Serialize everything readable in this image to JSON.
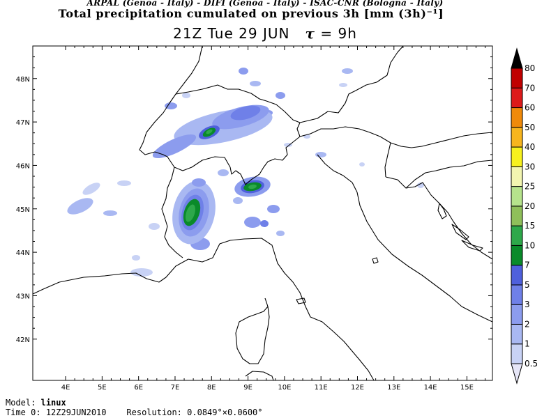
{
  "header": {
    "credits": "ARPAL (Genoa - Italy)  -  DIFI (Genoa - Italy)  -  ISAC-CNR (Bologna - Italy)",
    "title": "Total precipitation cumulated on previous 3h [mm (3h)⁻¹]",
    "time_label": "21Z Tue 29 JUN",
    "tau_symbol": "τ",
    "tau_value": "= 9h"
  },
  "map": {
    "lon_ticks": [
      "4E",
      "5E",
      "6E",
      "7E",
      "8E",
      "9E",
      "10E",
      "11E",
      "12E",
      "13E",
      "14E",
      "15E"
    ],
    "lat_ticks": [
      "48N",
      "47N",
      "46N",
      "45N",
      "44N",
      "43N",
      "42N"
    ],
    "lon_range": [
      3.1,
      15.7
    ],
    "lat_range": [
      41.05,
      48.75
    ]
  },
  "colorbar": {
    "labels": [
      "0.5",
      "1",
      "2",
      "3",
      "5",
      "7",
      "10",
      "15",
      "20",
      "25",
      "30",
      "40",
      "50",
      "60",
      "70",
      "80"
    ],
    "colors": [
      "#e6e6f7",
      "#c8d2f5",
      "#a9b8f2",
      "#8c9cee",
      "#6f80e8",
      "#4f60dc",
      "#0a8a2a",
      "#2ea84a",
      "#8fbf5a",
      "#b6e38c",
      "#f2f5b0",
      "#f7f11e",
      "#f7b51e",
      "#f08a0a",
      "#dd1a1a",
      "#c00000",
      "#8b0000"
    ]
  },
  "footer": {
    "model_label": "Model:",
    "model_value": "linux",
    "time0_label": "Time 0:",
    "time0_value": "12Z29JUN2010",
    "resolution_label": "Resolution:",
    "resolution_value": "0.0849°×0.0600°"
  }
}
